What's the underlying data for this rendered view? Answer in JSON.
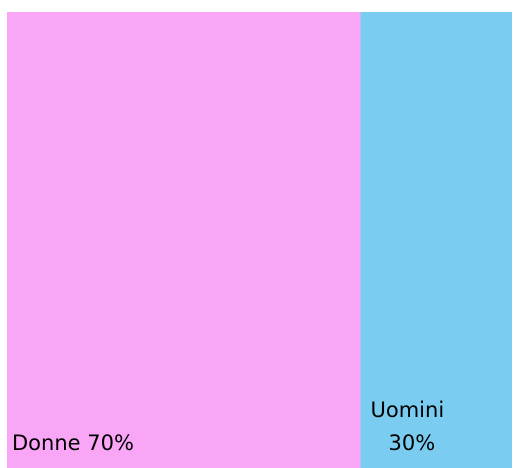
{
  "chart_data": {
    "type": "treemap",
    "categories": [
      "Donne",
      "Uomini"
    ],
    "values": [
      70,
      30
    ],
    "value_labels": [
      "70%",
      "30%"
    ],
    "colors": [
      "#f9a6f6",
      "#7acdf0"
    ]
  }
}
